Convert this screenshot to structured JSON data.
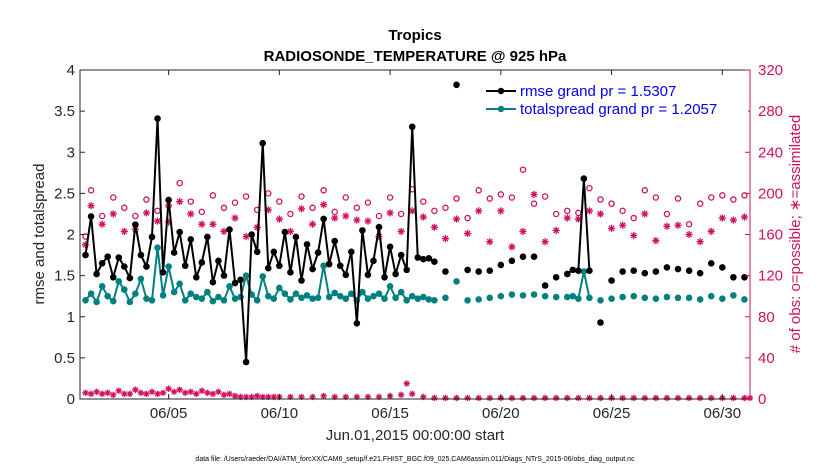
{
  "chart_data": {
    "type": "line",
    "title": "Tropics",
    "subtitle": "RADIOSONDE_TEMPERATURE @ 925 hPa",
    "xlabel": "Jun.01,2015 00:00:00 start",
    "ylabel_left": "rmse and totalspread",
    "ylabel_right": "# of obs: o=possible; ∗=assimilated",
    "footnote": "data file: /Users/raeder/DAI/ATM_forcXX/CAM6_setup/f.e21.FHIST_BGC.f09_025.CAM6assim.011/Diags_NTrS_2015-06/obs_diag_output.nc",
    "xlim": [
      1.0,
      31.25
    ],
    "ylim_left": [
      0,
      4
    ],
    "ylim_right": [
      0,
      320
    ],
    "x_ticks": [
      5,
      10,
      15,
      20,
      25,
      30
    ],
    "x_tick_labels": [
      "06/05",
      "06/10",
      "06/15",
      "06/20",
      "06/25",
      "06/30"
    ],
    "y_ticks_left": [
      "0",
      "0.5",
      "1",
      "1.5",
      "2",
      "2.5",
      "3",
      "3.5",
      "4"
    ],
    "y_ticks_right": [
      "0",
      "40",
      "80",
      "120",
      "160",
      "200",
      "240",
      "280",
      "320"
    ],
    "legend": [
      "rmse grand pr = 1.5307",
      "totalspread grand pr = 1.2057"
    ],
    "colors": {
      "rmse": "#000000",
      "spread": "#008080",
      "obs": "#d0115e",
      "axis_left": "#262626",
      "axis_right": "#d0115e"
    },
    "series": [
      {
        "name": "rmse",
        "x": [
          1.25,
          1.5,
          1.75,
          2.0,
          2.25,
          2.5,
          2.75,
          3.0,
          3.25,
          3.5,
          3.75,
          4.0,
          4.25,
          4.5,
          4.75,
          5.0,
          5.25,
          5.5,
          5.75,
          6.0,
          6.25,
          6.5,
          6.75,
          7.0,
          7.25,
          7.5,
          7.75,
          8.0,
          8.25,
          8.5,
          8.75,
          9.0,
          9.25,
          9.5,
          9.75,
          10.0,
          10.25,
          10.5,
          10.75,
          11.0,
          11.25,
          11.5,
          11.75,
          12.0,
          12.25,
          12.5,
          12.75,
          13.0,
          13.25,
          13.5,
          13.75,
          14.0,
          14.25,
          14.5,
          14.75,
          15.0,
          15.25,
          15.5,
          15.75,
          16.0,
          16.25,
          16.5,
          16.75,
          17.0,
          17.5,
          18.0,
          18.5,
          19.0,
          19.5,
          20.0,
          20.5,
          21.0,
          21.5,
          22.0,
          22.5,
          23.0,
          23.25,
          23.5,
          23.75,
          24.0,
          24.5,
          25.0,
          25.5,
          26.0,
          26.5,
          27.0,
          27.5,
          28.0,
          28.5,
          29.0,
          29.5,
          30.0,
          30.5,
          31.0
        ],
        "values": [
          1.75,
          2.22,
          1.52,
          1.65,
          1.73,
          1.48,
          1.72,
          1.61,
          1.47,
          2.12,
          1.75,
          1.61,
          1.97,
          3.41,
          1.54,
          2.42,
          1.78,
          2.03,
          1.62,
          1.94,
          1.48,
          1.66,
          1.97,
          1.42,
          1.68,
          1.5,
          2.06,
          1.41,
          1.45,
          0.45,
          2.0,
          1.79,
          3.11,
          1.59,
          1.79,
          1.62,
          2.03,
          1.54,
          1.97,
          1.44,
          1.88,
          1.58,
          1.78,
          2.19,
          1.64,
          1.92,
          1.62,
          1.51,
          1.79,
          0.92,
          2.05,
          1.51,
          1.68,
          2.09,
          1.48,
          1.85,
          1.52,
          1.75,
          1.57,
          3.31,
          1.72,
          1.7,
          1.71,
          1.67,
          1.55,
          3.82,
          1.57,
          1.55,
          1.56,
          1.63,
          1.68,
          1.73,
          1.73,
          1.38,
          1.48,
          1.52,
          1.57,
          1.56,
          2.68,
          1.56,
          0.93,
          1.44,
          1.55,
          1.56,
          1.53,
          1.55,
          1.6,
          1.58,
          1.56,
          1.53,
          1.65,
          1.6,
          1.48,
          1.48
        ]
      },
      {
        "name": "totalspread",
        "x": [
          1.25,
          1.5,
          1.75,
          2.0,
          2.25,
          2.5,
          2.75,
          3.0,
          3.25,
          3.5,
          3.75,
          4.0,
          4.25,
          4.5,
          4.75,
          5.0,
          5.25,
          5.5,
          5.75,
          6.0,
          6.25,
          6.5,
          6.75,
          7.0,
          7.25,
          7.5,
          7.75,
          8.0,
          8.25,
          8.5,
          8.75,
          9.0,
          9.25,
          9.5,
          9.75,
          10.0,
          10.25,
          10.5,
          10.75,
          11.0,
          11.25,
          11.5,
          11.75,
          12.0,
          12.25,
          12.5,
          12.75,
          13.0,
          13.25,
          13.5,
          13.75,
          14.0,
          14.25,
          14.5,
          14.75,
          15.0,
          15.25,
          15.5,
          15.75,
          16.0,
          16.25,
          16.5,
          16.75,
          17.0,
          17.5,
          18.0,
          18.5,
          19.0,
          19.5,
          20.0,
          20.5,
          21.0,
          21.5,
          22.0,
          22.5,
          23.0,
          23.25,
          23.5,
          23.75,
          24.0,
          24.5,
          25.0,
          25.5,
          26.0,
          26.5,
          27.0,
          27.5,
          28.0,
          28.5,
          29.0,
          29.5,
          30.0,
          30.5,
          31.0
        ],
        "values": [
          1.2,
          1.28,
          1.18,
          1.37,
          1.25,
          1.19,
          1.43,
          1.33,
          1.18,
          1.28,
          1.46,
          1.22,
          1.2,
          1.84,
          1.26,
          1.61,
          1.3,
          1.4,
          1.2,
          1.28,
          1.24,
          1.22,
          1.3,
          1.19,
          1.24,
          1.2,
          1.37,
          1.22,
          1.24,
          1.5,
          1.27,
          1.2,
          1.49,
          1.25,
          1.22,
          1.35,
          1.28,
          1.21,
          1.28,
          1.23,
          1.26,
          1.22,
          1.23,
          1.62,
          1.24,
          1.29,
          1.25,
          1.22,
          1.28,
          1.2,
          1.3,
          1.22,
          1.25,
          1.28,
          1.22,
          1.37,
          1.23,
          1.3,
          1.2,
          1.25,
          1.22,
          1.24,
          1.21,
          1.2,
          1.23,
          1.43,
          1.2,
          1.21,
          1.23,
          1.25,
          1.27,
          1.26,
          1.27,
          1.25,
          1.24,
          1.24,
          1.25,
          1.22,
          1.55,
          1.23,
          1.2,
          1.22,
          1.24,
          1.25,
          1.23,
          1.22,
          1.24,
          1.23,
          1.23,
          1.21,
          1.25,
          1.22,
          1.26,
          1.21
        ]
      },
      {
        "name": "obs possible",
        "x": [
          1.25,
          1.5,
          2.0,
          2.5,
          3.0,
          3.5,
          4.0,
          4.5,
          5.0,
          5.5,
          6.0,
          6.5,
          7.0,
          7.5,
          8.0,
          8.5,
          9.0,
          9.5,
          10.0,
          10.5,
          11.0,
          11.5,
          12.0,
          12.5,
          13.0,
          13.5,
          14.0,
          14.5,
          15.0,
          15.5,
          16.0,
          16.5,
          17.0,
          17.5,
          18.0,
          18.5,
          19.0,
          19.5,
          20.0,
          20.5,
          21.0,
          21.5,
          22.0,
          22.5,
          23.0,
          23.5,
          24.0,
          24.5,
          25.0,
          25.5,
          26.0,
          26.5,
          27.0,
          27.5,
          28.0,
          28.5,
          29.0,
          29.5,
          30.0,
          30.5,
          31.0
        ],
        "values": [
          158,
          203,
          178,
          196,
          186,
          178,
          194,
          183,
          188,
          210,
          192,
          182,
          198,
          186,
          191,
          197,
          184,
          200,
          192,
          180,
          197,
          186,
          203,
          182,
          196,
          186,
          191,
          178,
          196,
          180,
          204,
          192,
          183,
          186,
          195,
          176,
          203,
          195,
          199,
          196,
          223,
          190,
          197,
          180,
          183,
          181,
          205,
          194,
          190,
          183,
          176,
          203,
          196,
          180,
          195,
          170,
          190,
          196,
          198,
          194,
          198
        ]
      },
      {
        "name": "obs assimilated",
        "x": [
          1.25,
          1.5,
          2.0,
          2.5,
          3.0,
          3.5,
          4.0,
          4.5,
          5.0,
          5.5,
          6.0,
          6.5,
          7.0,
          7.5,
          8.0,
          8.5,
          9.0,
          9.5,
          10.0,
          10.5,
          11.0,
          11.5,
          12.0,
          12.5,
          13.0,
          13.5,
          14.0,
          14.5,
          15.0,
          15.5,
          16.0,
          16.5,
          17.0,
          17.5,
          18.0,
          18.5,
          19.0,
          19.5,
          20.0,
          20.5,
          21.0,
          21.5,
          22.0,
          22.5,
          23.0,
          23.5,
          24.0,
          24.5,
          25.0,
          25.5,
          26.0,
          26.5,
          27.0,
          27.5,
          28.0,
          28.5,
          29.0,
          29.5,
          30.0,
          30.5,
          31.0
        ],
        "values": [
          150,
          188,
          170,
          180,
          163,
          165,
          181,
          173,
          172,
          192,
          180,
          170,
          170,
          163,
          176,
          158,
          167,
          184,
          175,
          163,
          185,
          170,
          189,
          176,
          178,
          174,
          173,
          158,
          181,
          163,
          183,
          177,
          167,
          156,
          175,
          161,
          183,
          153,
          183,
          148,
          163,
          199,
          153,
          164,
          176,
          175,
          183,
          180,
          166,
          169,
          159,
          180,
          154,
          168,
          169,
          160,
          153,
          163,
          176,
          174,
          177
        ]
      },
      {
        "name": "obs rejected",
        "x": [
          1.25,
          1.5,
          1.75,
          2.0,
          2.25,
          2.5,
          2.75,
          3.0,
          3.25,
          3.5,
          3.75,
          4.0,
          4.25,
          4.5,
          4.75,
          5.0,
          5.25,
          5.5,
          5.75,
          6.0,
          6.25,
          6.5,
          6.75,
          7.0,
          7.25,
          7.5,
          7.75,
          8.0,
          8.25,
          8.5,
          8.75,
          9.0,
          9.25,
          9.5,
          9.75,
          10.0,
          10.5,
          11.0,
          11.5,
          12.0,
          12.5,
          13.0,
          13.5,
          14.0,
          14.5,
          15.0,
          15.5,
          15.75,
          16.0,
          16.5,
          17.0,
          17.5,
          18.0,
          18.5,
          19.0,
          19.5,
          20.0,
          20.5,
          21.0,
          21.5,
          22.0,
          22.5,
          23.0,
          23.5,
          24.0,
          24.5,
          25.0,
          25.5,
          26.0,
          26.5,
          27.0,
          27.5,
          28.0,
          28.5,
          29.0,
          29.5,
          30.0,
          30.5,
          31.0,
          31.25
        ],
        "values": [
          6,
          5,
          7,
          5,
          6,
          4,
          8,
          5,
          5,
          9,
          6,
          5,
          7,
          5,
          6,
          10,
          7,
          9,
          6,
          7,
          5,
          8,
          6,
          5,
          7,
          4,
          5,
          3,
          2,
          2,
          2,
          3,
          2,
          2,
          2,
          2,
          2,
          2,
          2,
          3,
          2,
          2,
          2,
          2,
          2,
          3,
          4,
          15,
          5,
          2,
          1,
          1,
          1,
          1,
          1,
          1,
          1,
          1,
          1,
          1,
          1,
          1,
          1,
          1,
          1,
          1,
          1,
          1,
          1,
          1,
          1,
          1,
          1,
          1,
          1,
          1,
          1,
          1,
          1,
          1
        ]
      }
    ]
  }
}
